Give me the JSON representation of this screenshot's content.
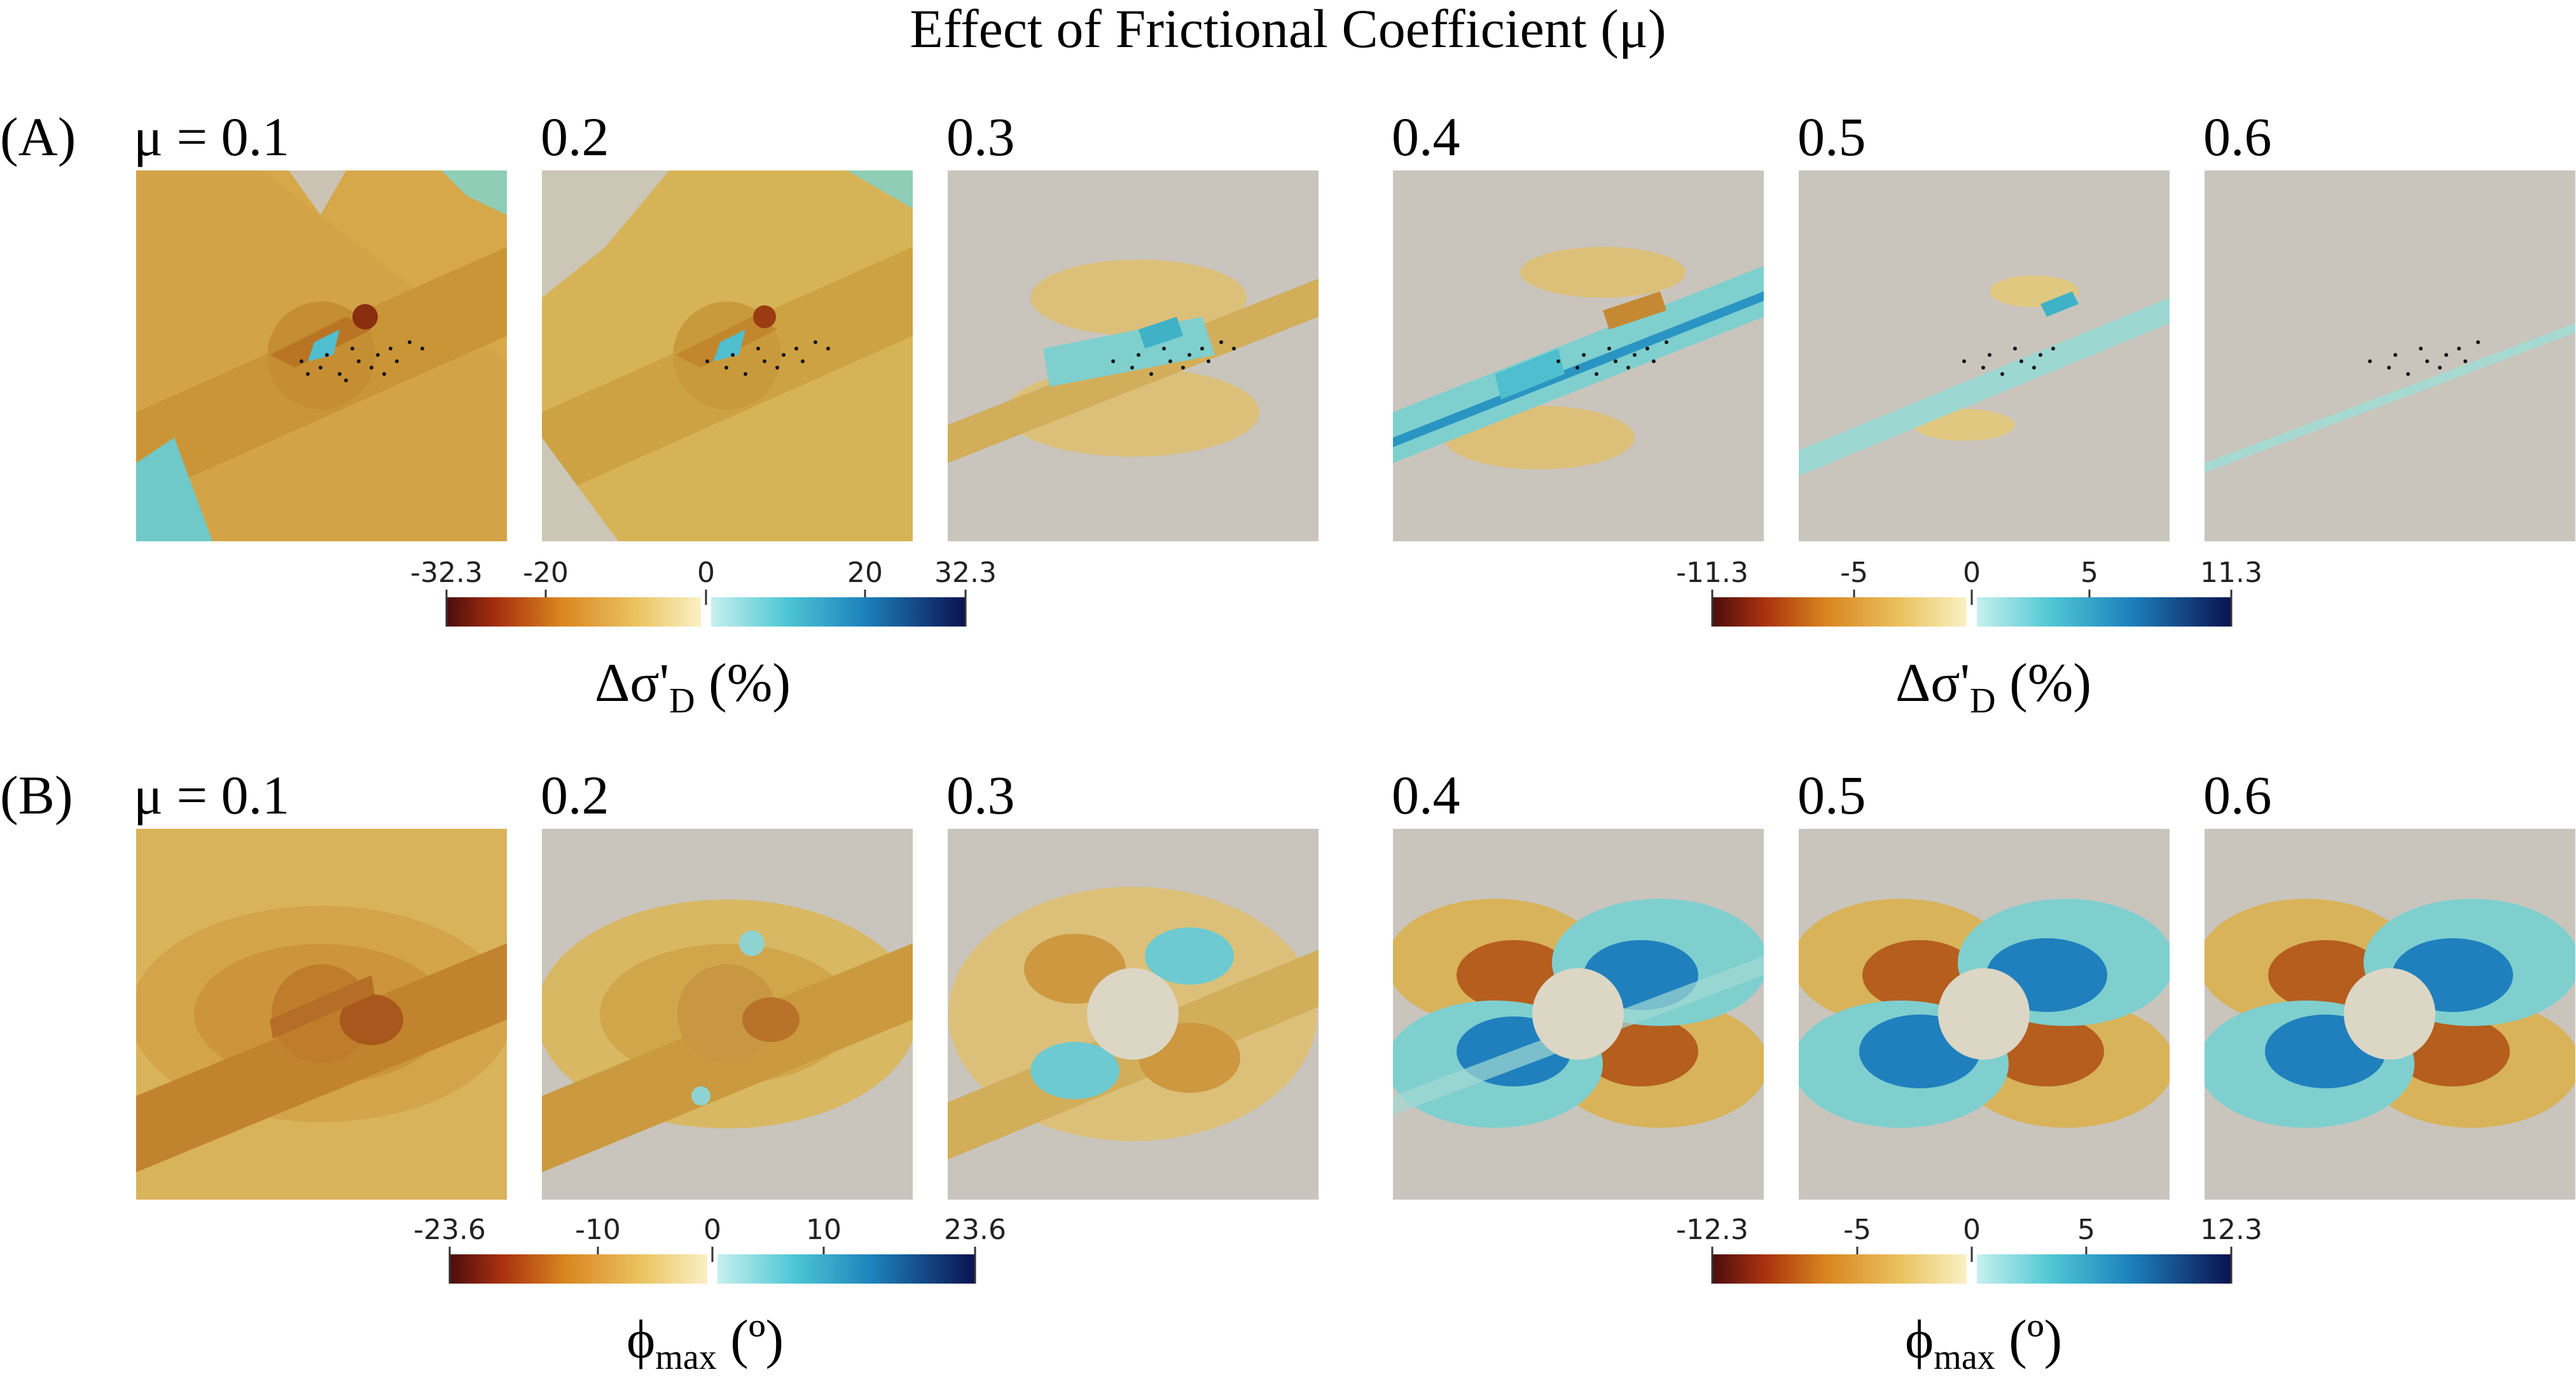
{
  "figure_title": "Effect of Frictional Coefficient (μ)",
  "row_a": {
    "label": "(A)",
    "panels": [
      "μ = 0.1",
      "0.2",
      "0.3",
      "0.4",
      "0.5",
      "0.6"
    ],
    "colorbar_left": {
      "ticks": [
        "-32.3",
        "-20",
        "0",
        "20",
        "32.3"
      ],
      "title_main": "Δσ'",
      "title_sub": "D",
      "title_unit": " (%)"
    },
    "colorbar_right": {
      "ticks": [
        "-11.3",
        "-5",
        "0",
        "5",
        "11.3"
      ],
      "title_main": "Δσ'",
      "title_sub": "D",
      "title_unit": " (%)"
    }
  },
  "row_b": {
    "label": "(B)",
    "panels": [
      "μ = 0.1",
      "0.2",
      "0.3",
      "0.4",
      "0.5",
      "0.6"
    ],
    "colorbar_left": {
      "ticks": [
        "-23.6",
        "-10",
        "0",
        "10",
        "23.6"
      ],
      "title_main": "ϕ",
      "title_sub": "max",
      "title_unit": " (º)"
    },
    "colorbar_right": {
      "ticks": [
        "-12.3",
        "-5",
        "0",
        "5",
        "12.3"
      ],
      "title_main": "ϕ",
      "title_sub": "max",
      "title_unit": " (º)"
    }
  },
  "colors": {
    "neutral": "#c9c5bd",
    "negative_scale": [
      "#4a0d0d",
      "#7a1a10",
      "#a8300f",
      "#c85a14",
      "#d9861f",
      "#e2a63a",
      "#ebc462",
      "#f4de95",
      "#faf0c4"
    ],
    "positive_scale": [
      "#c7f0ee",
      "#8ee0e0",
      "#4cc6d4",
      "#26a9c9",
      "#1d82bd",
      "#1a5ea8",
      "#183e8f",
      "#13256f",
      "#0b1250"
    ]
  }
}
